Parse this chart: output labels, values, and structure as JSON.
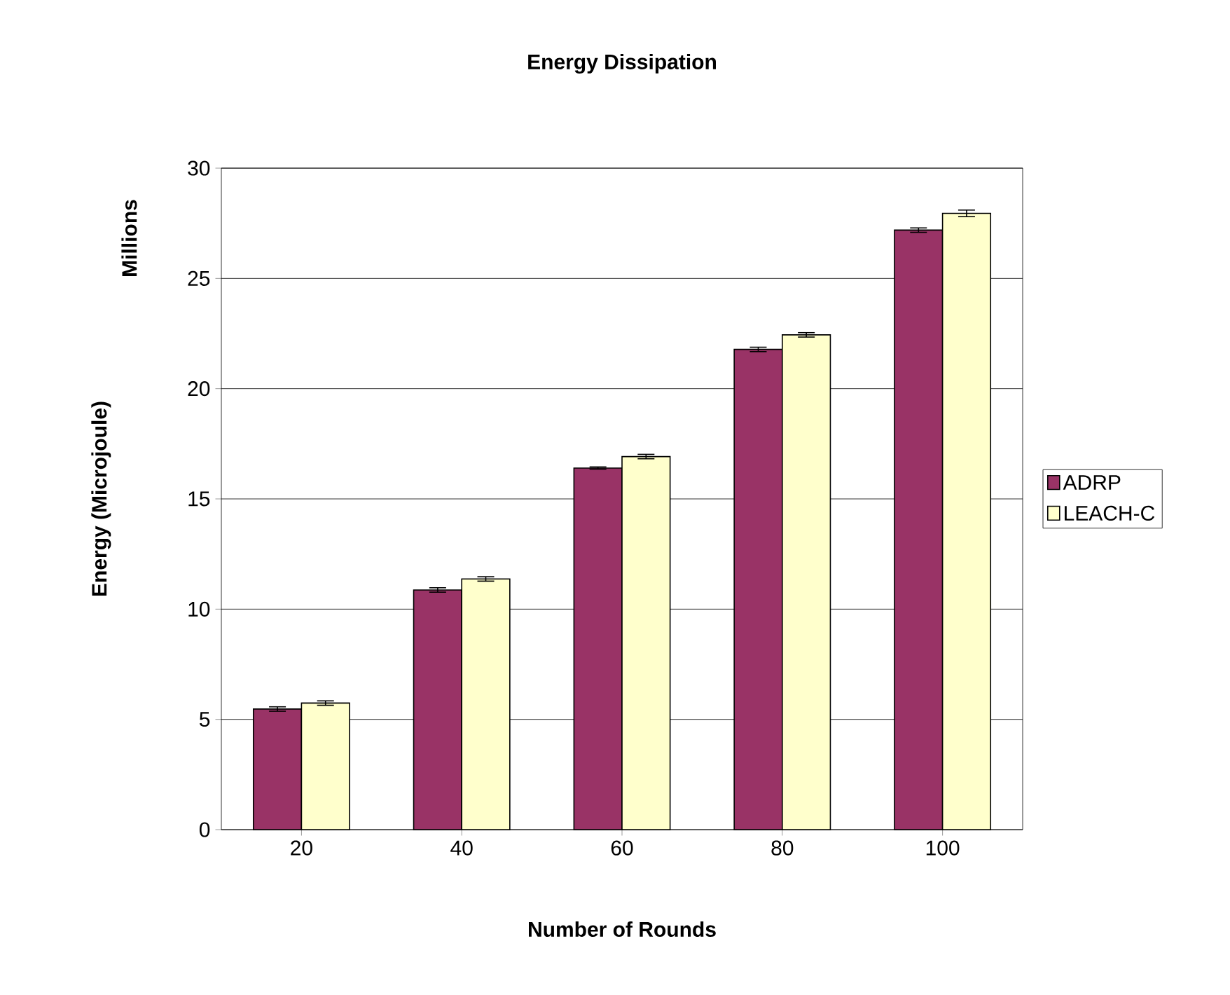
{
  "chart_data": {
    "type": "bar",
    "title": "Energy Dissipation",
    "xlabel": "Number of Rounds",
    "ylabel": "Energy (Microjoule)",
    "annotations": [
      "Millions"
    ],
    "categories": [
      "20",
      "40",
      "60",
      "80",
      "100"
    ],
    "series": [
      {
        "name": "ADRP",
        "color": "#993366",
        "values": [
          5.47,
          10.87,
          16.4,
          21.78,
          27.19
        ],
        "errors": [
          0.1,
          0.1,
          0.05,
          0.1,
          0.1
        ]
      },
      {
        "name": "LEACH-C",
        "color": "#ffffcc",
        "values": [
          5.74,
          11.37,
          16.92,
          22.44,
          27.95
        ],
        "errors": [
          0.1,
          0.1,
          0.1,
          0.1,
          0.15
        ]
      }
    ],
    "ylim": [
      0,
      30
    ],
    "yticks": [
      0,
      5,
      10,
      15,
      20,
      25,
      30
    ],
    "grid": "y",
    "legend": "right"
  }
}
